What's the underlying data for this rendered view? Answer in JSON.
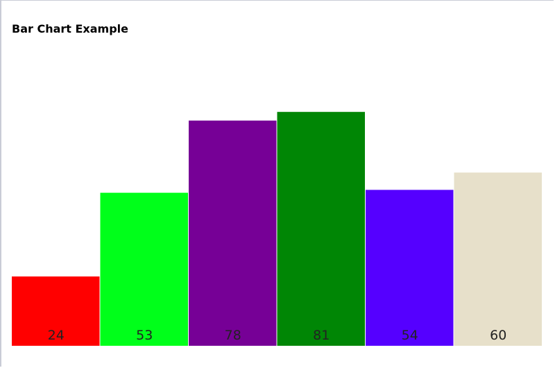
{
  "chart_data": {
    "type": "bar",
    "title": "Bar Chart Example",
    "categories": [
      "",
      "",
      "",
      "",
      "",
      ""
    ],
    "values": [
      24,
      53,
      78,
      81,
      54,
      60
    ],
    "colors": [
      "#ff0000",
      "#00ff1a",
      "#760096",
      "#008605",
      "#5500ff",
      "#e7e0ca"
    ],
    "ylim": [
      0,
      120
    ],
    "grid": false,
    "legend": "none"
  }
}
